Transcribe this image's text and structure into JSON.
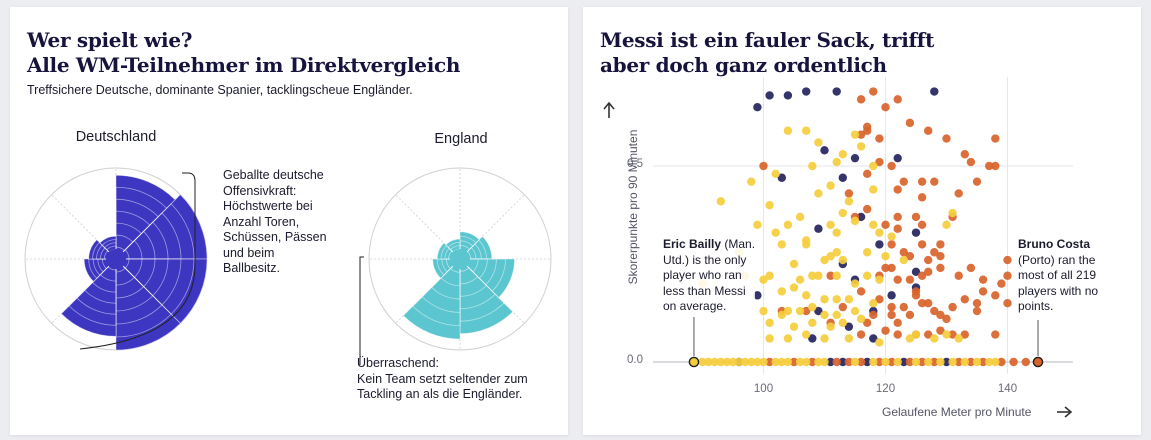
{
  "left_card": {
    "title_line1": "Wer spielt wie?",
    "title_line2": "Alle WM-Teilnehmer im Direktvergleich",
    "subtitle": "Treffsichere Deutsche, dominante Spanier, tacklingscheue Engländer.",
    "radar_germany": {
      "label": "Deutschland",
      "color": "#3d36c0",
      "annotation": [
        "Geballte deutsche",
        "Offensivkraft:",
        "Höchstwerte bei",
        "Anzahl Toren,",
        "Schüssen, Pässen",
        "und beim",
        "Ballbesitz."
      ]
    },
    "radar_england": {
      "label": "England",
      "color": "#5cc6d0",
      "annotation": [
        "Überraschend:",
        "Kein Team setzt seltender zum",
        "Tackling an als die Engländer."
      ]
    }
  },
  "right_card": {
    "title_line1": "Messi ist ein fauler Sack, trifft",
    "title_line2": "aber doch ganz ordentlich",
    "callout_left": {
      "name": "Eric Bailly",
      "lines": [
        " (Man.",
        "Utd.) is the only",
        "player who ran",
        "less than Messi",
        "on average."
      ]
    },
    "callout_right": {
      "name": "Bruno Costa",
      "lines": [
        "(Porto) ran the",
        "most of all 219",
        "players with no",
        "points."
      ]
    }
  },
  "chart_data": {
    "type": "scatter",
    "title": "Messi ist ein fauler Sack, trifft aber doch ganz ordentlich",
    "xlabel": "Gelaufene Meter pro Minute",
    "ylabel": "Skorerpunkte pro 90 Minuten",
    "xlim": [
      87,
      150
    ],
    "ylim": [
      -0.03,
      0.72
    ],
    "xticks": [
      100,
      120,
      140
    ],
    "yticks": [
      0,
      0.5
    ],
    "xtick_labels": [
      "100",
      "120",
      "140"
    ],
    "ytick_labels": [
      "0.0",
      "0.5"
    ],
    "grid": true,
    "colors": {
      "navy": "#25245e",
      "orange": "#d9642b",
      "yellow": "#f5cd3c"
    },
    "highlighted": [
      {
        "name": "Eric Bailly",
        "x": 88.6,
        "y": 0
      },
      {
        "name": "Bruno Costa",
        "x": 145.0,
        "y": 0
      }
    ],
    "series": [
      {
        "color": "navy",
        "points": [
          [
            101,
            0.68
          ],
          [
            104,
            0.68
          ],
          [
            107,
            0.69
          ],
          [
            112,
            0.69
          ],
          [
            128,
            0.69
          ],
          [
            99,
            0.65
          ],
          [
            103,
            0.47
          ],
          [
            110,
            0.54
          ],
          [
            115,
            0.52
          ],
          [
            122,
            0.52
          ],
          [
            113,
            0.47
          ],
          [
            116,
            0.37
          ],
          [
            119,
            0.3
          ],
          [
            109,
            0.34
          ],
          [
            125,
            0.33
          ],
          [
            99,
            0.17
          ],
          [
            113,
            0.25
          ],
          [
            125,
            0.23
          ],
          [
            109,
            0.13
          ],
          [
            125,
            0.19
          ],
          [
            118,
            0.13
          ],
          [
            115,
            0.21
          ],
          [
            121,
            0.17
          ],
          [
            114,
            0.09
          ],
          [
            108,
            0.06
          ],
          [
            118,
            0.06
          ],
          [
            96,
            0.0
          ],
          [
            111,
            0.0
          ],
          [
            123,
            0.0
          ],
          [
            130,
            0.0
          ],
          [
            117,
            0.0
          ],
          [
            113,
            0.0
          ]
        ]
      },
      {
        "color": "orange",
        "points": [
          [
            118,
            0.69
          ],
          [
            116,
            0.67
          ],
          [
            120,
            0.65
          ],
          [
            122,
            0.67
          ],
          [
            124,
            0.61
          ],
          [
            127,
            0.59
          ],
          [
            138,
            0.57
          ],
          [
            130,
            0.57
          ],
          [
            133,
            0.53
          ],
          [
            134,
            0.51
          ],
          [
            121,
            0.5
          ],
          [
            116,
            0.58
          ],
          [
            117,
            0.59
          ],
          [
            117,
            0.6
          ],
          [
            119,
            0.57
          ],
          [
            117,
            0.48
          ],
          [
            123,
            0.46
          ],
          [
            126,
            0.46
          ],
          [
            128,
            0.46
          ],
          [
            135,
            0.46
          ],
          [
            137,
            0.5
          ],
          [
            119,
            0.51
          ],
          [
            114,
            0.43
          ],
          [
            122,
            0.44
          ],
          [
            126,
            0.42
          ],
          [
            132,
            0.43
          ],
          [
            138,
            0.5
          ],
          [
            100,
            0.5
          ],
          [
            117,
            0.39
          ],
          [
            122,
            0.37
          ],
          [
            125,
            0.37
          ],
          [
            126,
            0.35
          ],
          [
            131,
            0.37
          ],
          [
            115,
            0.37
          ],
          [
            120,
            0.35
          ],
          [
            122,
            0.34
          ],
          [
            121,
            0.3
          ],
          [
            123,
            0.28
          ],
          [
            124,
            0.27
          ],
          [
            127,
            0.26
          ],
          [
            128,
            0.28
          ],
          [
            129,
            0.27
          ],
          [
            129,
            0.3
          ],
          [
            126,
            0.3
          ],
          [
            119,
            0.22
          ],
          [
            120,
            0.24
          ],
          [
            121,
            0.24
          ],
          [
            122,
            0.21
          ],
          [
            124,
            0.21
          ],
          [
            126,
            0.22
          ],
          [
            127,
            0.23
          ],
          [
            129,
            0.24
          ],
          [
            132,
            0.22
          ],
          [
            134,
            0.24
          ],
          [
            136,
            0.21
          ],
          [
            139,
            0.2
          ],
          [
            140,
            0.22
          ],
          [
            140,
            0.26
          ],
          [
            111,
            0.22
          ],
          [
            116,
            0.18
          ],
          [
            121,
            0.14
          ],
          [
            123,
            0.14
          ],
          [
            124,
            0.12
          ],
          [
            125,
            0.17
          ],
          [
            126,
            0.15
          ],
          [
            127,
            0.15
          ],
          [
            128,
            0.13
          ],
          [
            129,
            0.12
          ],
          [
            130,
            0.11
          ],
          [
            131,
            0.14
          ],
          [
            133,
            0.16
          ],
          [
            135,
            0.13
          ],
          [
            136,
            0.18
          ],
          [
            135,
            0.15
          ],
          [
            138,
            0.17
          ],
          [
            140,
            0.15
          ],
          [
            125,
            0.18
          ],
          [
            119,
            0.16
          ],
          [
            121,
            0.12
          ],
          [
            107,
            0.13
          ],
          [
            113,
            0.14
          ],
          [
            111,
            0.1
          ],
          [
            103,
            0.13
          ],
          [
            116,
            0.07
          ],
          [
            117,
            0.1
          ],
          [
            118,
            0.12
          ],
          [
            120,
            0.08
          ],
          [
            122,
            0.07
          ],
          [
            122,
            0.1
          ],
          [
            125,
            0.07
          ],
          [
            127,
            0.07
          ],
          [
            129,
            0.08
          ],
          [
            131,
            0.07
          ],
          [
            133,
            0.07
          ],
          [
            138,
            0.07
          ],
          [
            101,
            0.0
          ],
          [
            105,
            0.0
          ],
          [
            108,
            0.0
          ],
          [
            112,
            0.0
          ],
          [
            114,
            0.0
          ],
          [
            116,
            0.0
          ],
          [
            119,
            0.0
          ],
          [
            121,
            0.0
          ],
          [
            124,
            0.0
          ],
          [
            126,
            0.0
          ],
          [
            128,
            0.0
          ],
          [
            132,
            0.0
          ],
          [
            134,
            0.0
          ],
          [
            136,
            0.0
          ],
          [
            139,
            0.0
          ],
          [
            141,
            0.0
          ],
          [
            143,
            0.0
          ]
        ]
      },
      {
        "color": "yellow",
        "points": [
          [
            104,
            0.59
          ],
          [
            107,
            0.59
          ],
          [
            109,
            0.56
          ],
          [
            115,
            0.58
          ],
          [
            116,
            0.55
          ],
          [
            112,
            0.51
          ],
          [
            118,
            0.5
          ],
          [
            113,
            0.53
          ],
          [
            108,
            0.5
          ],
          [
            102,
            0.48
          ],
          [
            98,
            0.46
          ],
          [
            109,
            0.43
          ],
          [
            111,
            0.45
          ],
          [
            118,
            0.44
          ],
          [
            113,
            0.38
          ],
          [
            106,
            0.37
          ],
          [
            107,
            0.31
          ],
          [
            111,
            0.35
          ],
          [
            112,
            0.33
          ],
          [
            104,
            0.35
          ],
          [
            99,
            0.35
          ],
          [
            93,
            0.41
          ],
          [
            101,
            0.4
          ],
          [
            114,
            0.41
          ],
          [
            115,
            0.36
          ],
          [
            118,
            0.35
          ],
          [
            119,
            0.33
          ],
          [
            121,
            0.32
          ],
          [
            130,
            0.35
          ],
          [
            131,
            0.38
          ],
          [
            102,
            0.33
          ],
          [
            103,
            0.3
          ],
          [
            107,
            0.3
          ],
          [
            110,
            0.26
          ],
          [
            111,
            0.27
          ],
          [
            112,
            0.28
          ],
          [
            113,
            0.26
          ],
          [
            117,
            0.28
          ],
          [
            120,
            0.27
          ],
          [
            123,
            0.26
          ],
          [
            105,
            0.25
          ],
          [
            101,
            0.22
          ],
          [
            100,
            0.21
          ],
          [
            106,
            0.21
          ],
          [
            108,
            0.22
          ],
          [
            109,
            0.22
          ],
          [
            112,
            0.22
          ],
          [
            115,
            0.2
          ],
          [
            117,
            0.22
          ],
          [
            119,
            0.21
          ],
          [
            96,
            0.28
          ],
          [
            97,
            0.22
          ],
          [
            103,
            0.18
          ],
          [
            105,
            0.19
          ],
          [
            107,
            0.17
          ],
          [
            110,
            0.16
          ],
          [
            112,
            0.16
          ],
          [
            114,
            0.16
          ],
          [
            115,
            0.13
          ],
          [
            118,
            0.15
          ],
          [
            108,
            0.14
          ],
          [
            103,
            0.12
          ],
          [
            104,
            0.13
          ],
          [
            106,
            0.13
          ],
          [
            110,
            0.12
          ],
          [
            112,
            0.12
          ],
          [
            100,
            0.13
          ],
          [
            101,
            0.1
          ],
          [
            105,
            0.09
          ],
          [
            108,
            0.1
          ],
          [
            111,
            0.09
          ],
          [
            113,
            0.1
          ],
          [
            116,
            0.11
          ],
          [
            110,
            0.06
          ],
          [
            114,
            0.06
          ],
          [
            119,
            0.05
          ],
          [
            101,
            0.06
          ],
          [
            104,
            0.06
          ],
          [
            107,
            0.07
          ],
          [
            124,
            0.06
          ],
          [
            125,
            0.07
          ],
          [
            128,
            0.06
          ],
          [
            130,
            0.07
          ],
          [
            132,
            0.06
          ],
          [
            90,
            0.2
          ],
          [
            90,
            0.0
          ],
          [
            91,
            0.0
          ],
          [
            92,
            0.0
          ],
          [
            93,
            0.0
          ],
          [
            94,
            0.0
          ],
          [
            95,
            0.0
          ],
          [
            96,
            0.0
          ],
          [
            97,
            0.0
          ],
          [
            98,
            0.0
          ],
          [
            99,
            0.0
          ],
          [
            100,
            0.0
          ],
          [
            102,
            0.0
          ],
          [
            103,
            0.0
          ],
          [
            104,
            0.0
          ],
          [
            106,
            0.0
          ],
          [
            107,
            0.0
          ],
          [
            109,
            0.0
          ],
          [
            110,
            0.0
          ],
          [
            115,
            0.0
          ],
          [
            118,
            0.0
          ],
          [
            120,
            0.0
          ],
          [
            122,
            0.0
          ],
          [
            125,
            0.0
          ],
          [
            127,
            0.0
          ],
          [
            129,
            0.0
          ],
          [
            131,
            0.0
          ],
          [
            133,
            0.0
          ],
          [
            135,
            0.0
          ],
          [
            137,
            0.0
          ],
          [
            138,
            0.0
          ]
        ]
      }
    ]
  }
}
